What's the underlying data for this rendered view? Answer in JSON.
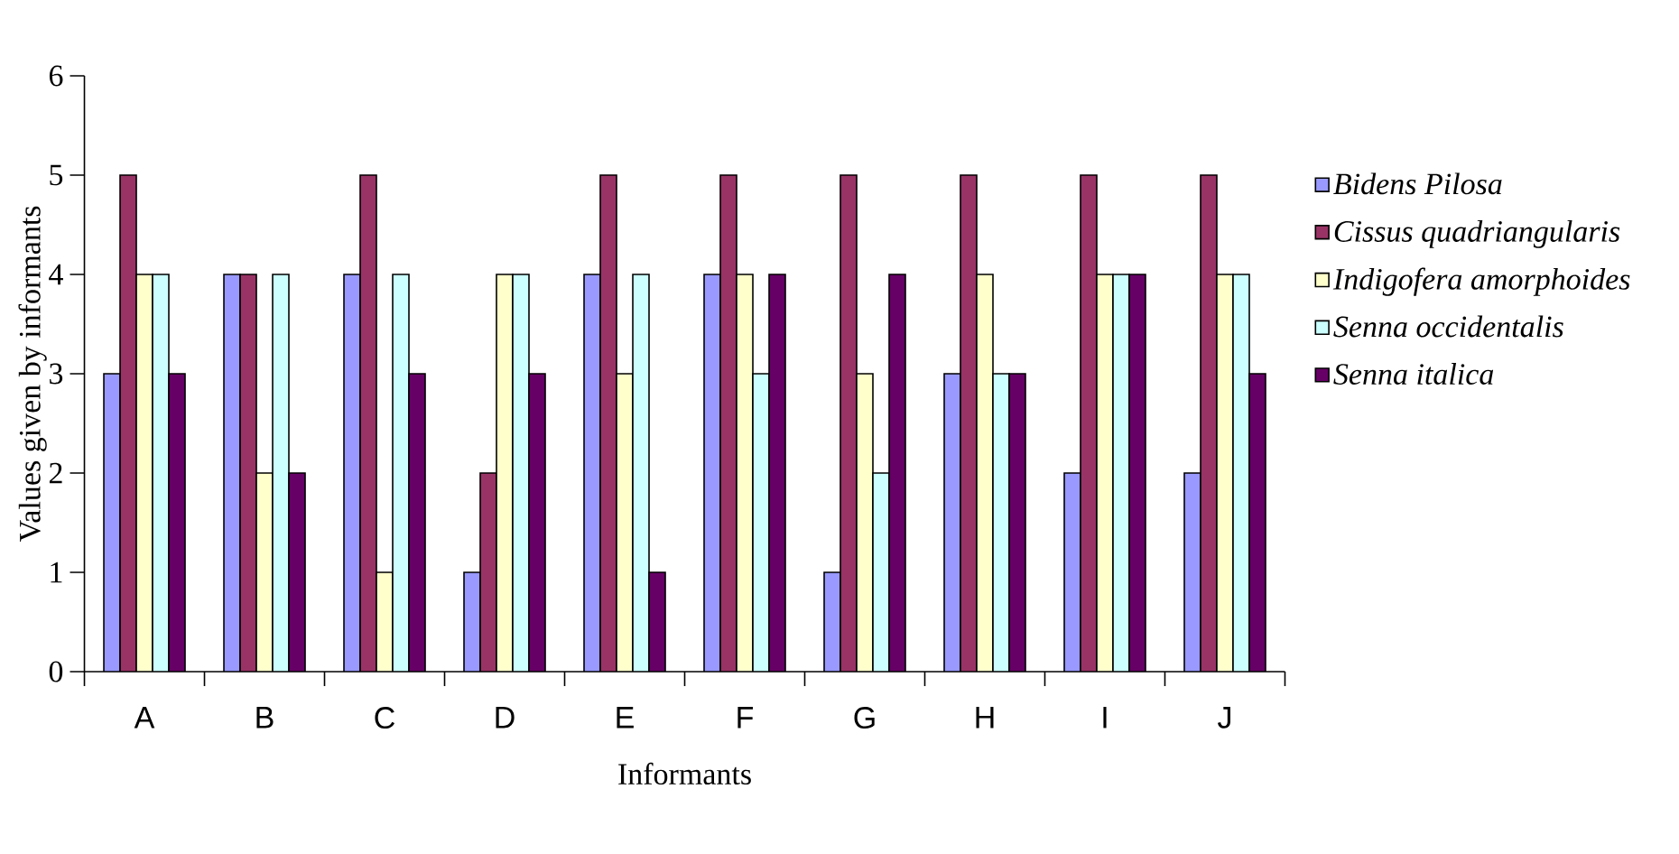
{
  "chart_data": {
    "type": "bar",
    "xlabel": "Informants",
    "ylabel": "Values given by informants",
    "categories": [
      "A",
      "B",
      "C",
      "D",
      "E",
      "F",
      "G",
      "H",
      "I",
      "J"
    ],
    "series": [
      {
        "name": "Bidens Pilosa",
        "color": "#9999ff",
        "values": [
          3,
          4,
          4,
          1,
          4,
          4,
          1,
          3,
          2,
          2
        ]
      },
      {
        "name": "Cissus quadriangularis",
        "color": "#993366",
        "values": [
          5,
          4,
          5,
          2,
          5,
          5,
          5,
          5,
          5,
          5
        ]
      },
      {
        "name": "Indigofera amorphoides",
        "color": "#ffffcc",
        "values": [
          4,
          2,
          1,
          4,
          3,
          4,
          3,
          4,
          4,
          4
        ]
      },
      {
        "name": "Senna occidentalis",
        "color": "#ccffff",
        "values": [
          4,
          4,
          4,
          4,
          4,
          3,
          2,
          3,
          4,
          4
        ]
      },
      {
        "name": "Senna italica",
        "color": "#660066",
        "values": [
          3,
          2,
          3,
          3,
          1,
          4,
          4,
          3,
          4,
          3
        ]
      }
    ],
    "ylim": [
      0,
      6
    ],
    "yticks": [
      0,
      1,
      2,
      3,
      4,
      5,
      6
    ],
    "legend": "right",
    "grid": false
  }
}
